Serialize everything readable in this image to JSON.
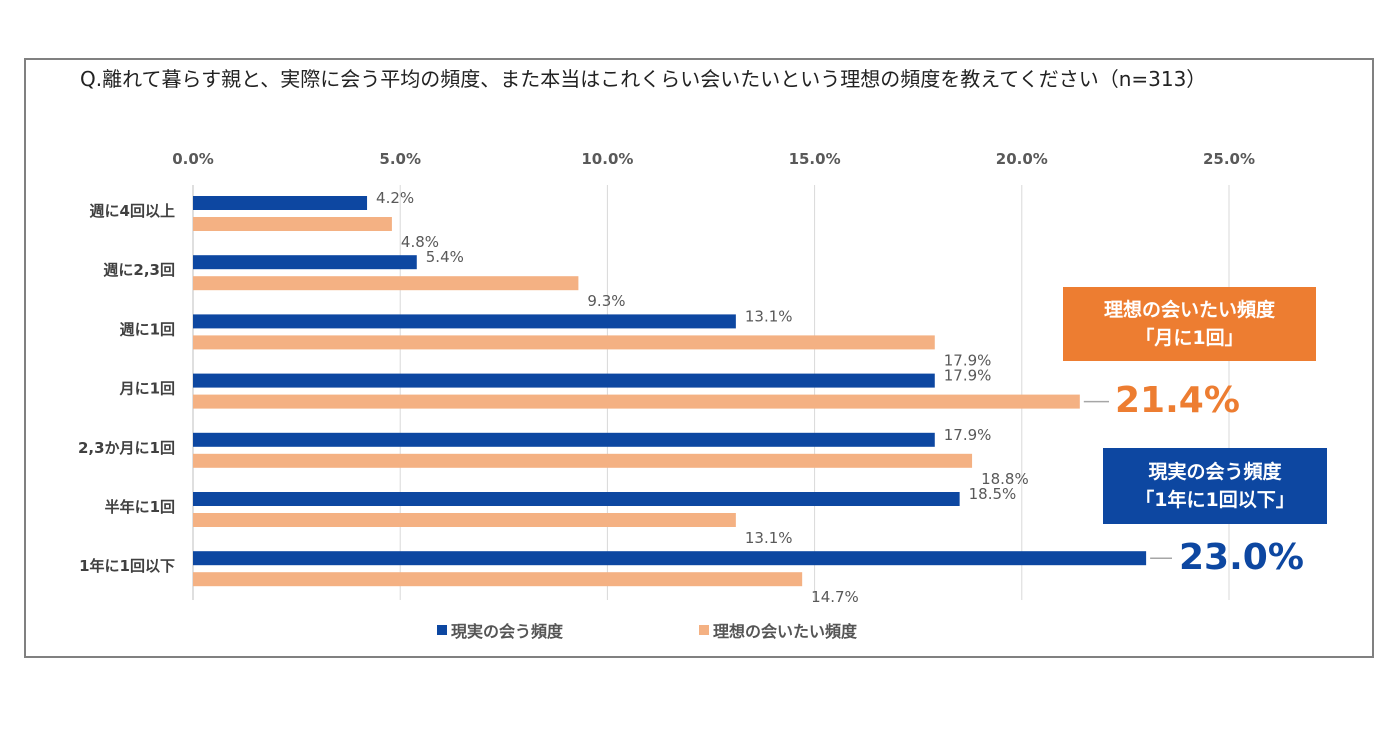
{
  "title": "Q.離れて暮らす親と、実際に会う平均の頻度、また本当はこれくらい会いたいという理想の頻度を教えてください（n=313）",
  "chart_data": {
    "type": "bar",
    "orientation": "horizontal",
    "categories": [
      "週に4回以上",
      "週に2,3回",
      "週に1回",
      "月に1回",
      "2,3か月に1回",
      "半年に1回",
      "1年に1回以下"
    ],
    "series": [
      {
        "name": "現実の会う頻度",
        "color": "#0D47A1",
        "values": [
          4.2,
          5.4,
          13.1,
          17.9,
          17.9,
          18.5,
          23.0
        ],
        "labels": [
          "4.2%",
          "5.4%",
          "13.1%",
          "17.9%",
          "17.9%",
          "18.5%",
          ""
        ]
      },
      {
        "name": "理想の会いたい頻度",
        "color": "#F4B183",
        "values": [
          4.8,
          9.3,
          17.9,
          21.4,
          18.8,
          13.1,
          14.7
        ],
        "labels": [
          "4.8%",
          "9.3%",
          "17.9%",
          "",
          "18.8%",
          "13.1%",
          "14.7%"
        ]
      }
    ],
    "xlim": [
      0,
      25
    ],
    "ticks": [
      "0.0%",
      "5.0%",
      "10.0%",
      "15.0%",
      "20.0%",
      "25.0%"
    ],
    "tick_values": [
      0,
      5,
      10,
      15,
      20,
      25
    ],
    "grid": true,
    "legend_position": "bottom"
  },
  "callouts": [
    {
      "line1": "理想の会いたい頻度",
      "line2": "「月に1回」",
      "value": "21.4%",
      "box_color": "#ED7D31",
      "value_color": "#ED7D31"
    },
    {
      "line1": "現実の会う頻度",
      "line2": "「1年に1回以下」",
      "value": "23.0%",
      "box_color": "#0D47A1",
      "value_color": "#0D47A1"
    }
  ]
}
